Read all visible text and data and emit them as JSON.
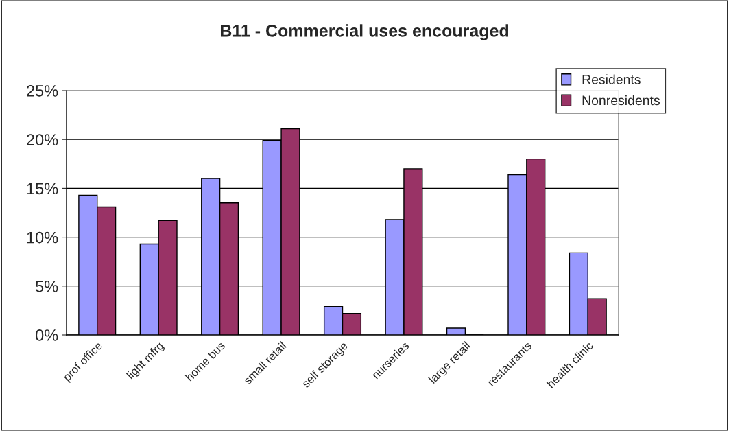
{
  "chart_data": {
    "type": "bar",
    "title": "B11 - Commercial uses encouraged",
    "categories": [
      "prof office",
      "light mfrg",
      "home bus",
      "small retail",
      "self storage",
      "nurseries",
      "large retail",
      "restaurants",
      "health clinic"
    ],
    "series": [
      {
        "name": "Residents",
        "color": "#9999ff",
        "values": [
          14.3,
          9.3,
          16.0,
          19.9,
          2.9,
          11.8,
          0.7,
          16.4,
          8.4
        ]
      },
      {
        "name": "Nonresidents",
        "color": "#993366",
        "values": [
          13.1,
          11.7,
          13.5,
          21.1,
          2.2,
          17.0,
          0,
          18.0,
          3.7
        ]
      }
    ],
    "ylim": [
      0,
      25
    ],
    "yticks": [
      {
        "value": 0,
        "label": "0%"
      },
      {
        "value": 5,
        "label": "5%"
      },
      {
        "value": 10,
        "label": "10%"
      },
      {
        "value": 15,
        "label": "15%"
      },
      {
        "value": 20,
        "label": "20%"
      },
      {
        "value": 25,
        "label": "25%"
      }
    ],
    "grid": "y",
    "legend": "top right"
  }
}
